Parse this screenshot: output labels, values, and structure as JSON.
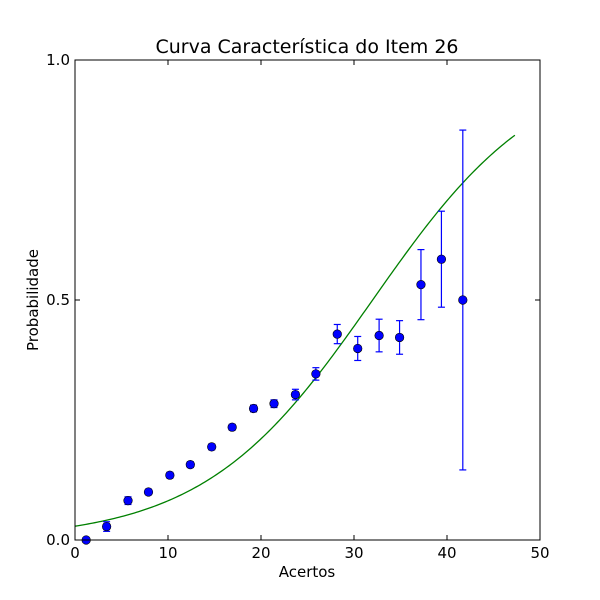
{
  "chart_data": {
    "type": "scatter",
    "title": "Curva Característica do Item 26",
    "xlabel": "Acertos",
    "ylabel": "Probabilidade",
    "xlim": [
      0,
      50
    ],
    "ylim": [
      0,
      1
    ],
    "x_ticks": [
      0,
      10,
      20,
      30,
      40,
      50
    ],
    "x_tick_labels": [
      "0",
      "10",
      "20",
      "30",
      "40",
      "50"
    ],
    "y_ticks": [
      0,
      0.5,
      1.0
    ],
    "y_tick_labels": [
      "0.0",
      "0.5",
      "1.0"
    ],
    "grid": false,
    "series": [
      {
        "kind": "points_with_error_bars",
        "color": "#0000ff",
        "points": [
          {
            "x": 1.2,
            "y": 0.0,
            "err": 0.0
          },
          {
            "x": 3.4,
            "y": 0.028,
            "err": 0.01
          },
          {
            "x": 5.7,
            "y": 0.082,
            "err": 0.008
          },
          {
            "x": 7.9,
            "y": 0.1,
            "err": 0.006
          },
          {
            "x": 10.2,
            "y": 0.135,
            "err": 0.006
          },
          {
            "x": 12.4,
            "y": 0.157,
            "err": 0.006
          },
          {
            "x": 14.7,
            "y": 0.194,
            "err": 0.006
          },
          {
            "x": 16.9,
            "y": 0.235,
            "err": 0.006
          },
          {
            "x": 19.2,
            "y": 0.274,
            "err": 0.007
          },
          {
            "x": 21.4,
            "y": 0.284,
            "err": 0.008
          },
          {
            "x": 23.7,
            "y": 0.303,
            "err": 0.011
          },
          {
            "x": 25.9,
            "y": 0.346,
            "err": 0.013
          },
          {
            "x": 28.2,
            "y": 0.429,
            "err": 0.02
          },
          {
            "x": 30.4,
            "y": 0.399,
            "err": 0.025
          },
          {
            "x": 32.7,
            "y": 0.426,
            "err": 0.034
          },
          {
            "x": 34.9,
            "y": 0.422,
            "err": 0.035
          },
          {
            "x": 37.2,
            "y": 0.532,
            "err": 0.073
          },
          {
            "x": 39.4,
            "y": 0.585,
            "err": 0.1
          },
          {
            "x": 41.7,
            "y": 0.5,
            "err": 0.354
          }
        ]
      },
      {
        "kind": "logistic_curve",
        "color": "#008000",
        "a": 0.11,
        "b": 32.0,
        "c": 0.0,
        "x_range": [
          0,
          47.3
        ]
      }
    ]
  }
}
